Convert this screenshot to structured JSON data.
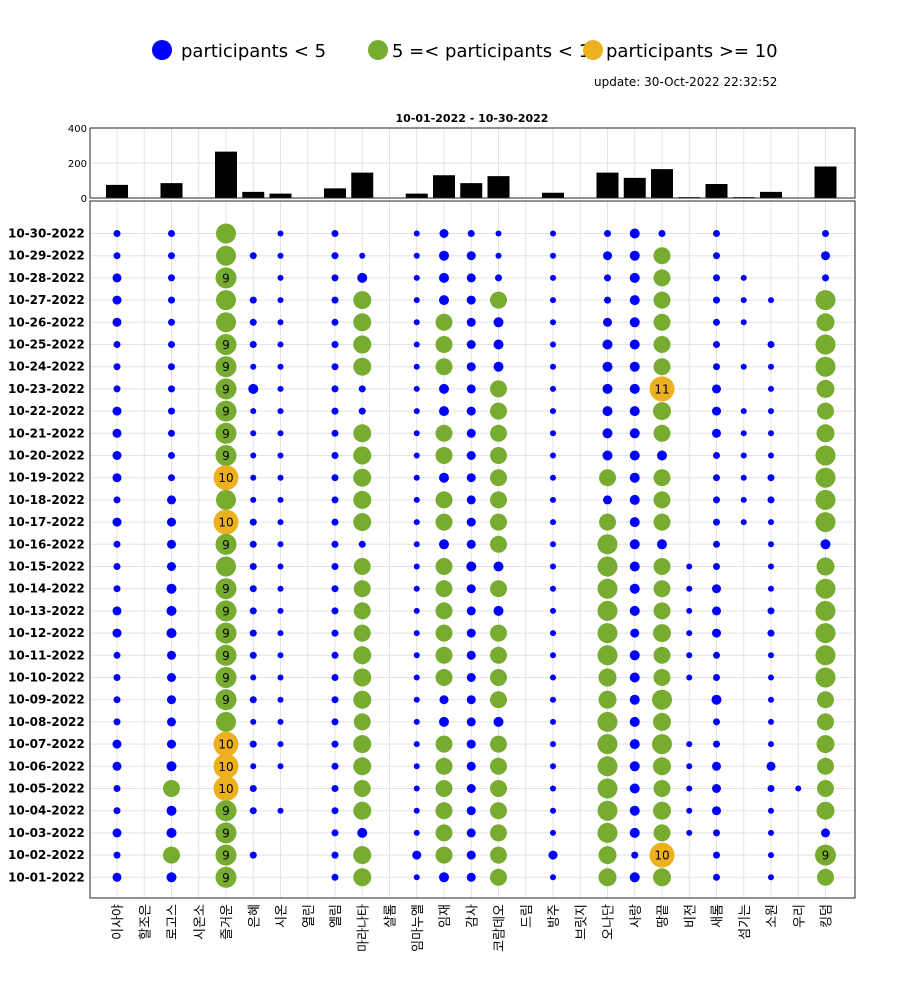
{
  "legend": [
    {
      "label": "participants < 5",
      "color": "#0000ff"
    },
    {
      "label": "5 =< participants < 10",
      "color": "#77ac30"
    },
    {
      "label": "participants >= 10",
      "color": "#edb120"
    }
  ],
  "update": "update: 30-Oct-2022 22:32:52",
  "title": "10-01-2022  - 10-30-2022",
  "chart_data": [
    {
      "type": "bar",
      "categories": [
        "이사야",
        "할조은",
        "로고스",
        "시온소",
        "즐거운",
        "은혜",
        "시온",
        "열린",
        "엘림",
        "마라나타",
        "샬롬",
        "임마누엘",
        "임재",
        "감사",
        "코람데오",
        "드림",
        "방주",
        "브릿지",
        "오나단",
        "사랑",
        "땅끝",
        "비전",
        "새롬",
        "섬기는",
        "소원",
        "우리",
        "킹덤"
      ],
      "values": [
        75,
        0,
        85,
        0,
        265,
        35,
        25,
        0,
        55,
        145,
        0,
        25,
        130,
        85,
        125,
        0,
        30,
        0,
        145,
        115,
        165,
        5,
        80,
        5,
        35,
        0,
        180
      ],
      "ylim": [
        0,
        400
      ],
      "yticks": [
        0,
        200,
        400
      ],
      "bar_color": "#000000"
    },
    {
      "type": "scatter",
      "dates": [
        "10-30-2022",
        "10-29-2022",
        "10-28-2022",
        "10-27-2022",
        "10-26-2022",
        "10-25-2022",
        "10-24-2022",
        "10-23-2022",
        "10-22-2022",
        "10-21-2022",
        "10-20-2022",
        "10-19-2022",
        "10-18-2022",
        "10-17-2022",
        "10-16-2022",
        "10-15-2022",
        "10-14-2022",
        "10-13-2022",
        "10-12-2022",
        "10-11-2022",
        "10-10-2022",
        "10-09-2022",
        "10-08-2022",
        "10-07-2022",
        "10-06-2022",
        "10-05-2022",
        "10-04-2022",
        "10-03-2022",
        "10-02-2022",
        "10-01-2022"
      ],
      "categories": [
        "이사야",
        "할조은",
        "로고스",
        "시온소",
        "즐거운",
        "은혜",
        "시온",
        "열린",
        "엘림",
        "마라나타",
        "샬롬",
        "임마누엘",
        "임재",
        "감사",
        "코람데오",
        "드림",
        "방주",
        "브릿지",
        "오나단",
        "사랑",
        "땅끝",
        "비전",
        "새롬",
        "섬기는",
        "소원",
        "우리",
        "킹덤"
      ],
      "rows": [
        [
          2,
          0,
          2,
          0,
          8,
          0,
          1,
          0,
          2,
          0,
          0,
          1,
          3,
          2,
          1,
          0,
          1,
          0,
          2,
          4,
          2,
          0,
          2,
          0,
          0,
          0,
          2
        ],
        [
          2,
          0,
          2,
          0,
          8,
          2,
          1,
          0,
          2,
          1,
          0,
          1,
          4,
          3,
          1,
          0,
          1,
          0,
          3,
          4,
          6,
          0,
          2,
          0,
          0,
          0,
          3
        ],
        [
          3,
          0,
          2,
          0,
          9,
          0,
          1,
          0,
          2,
          4,
          0,
          1,
          4,
          3,
          2,
          0,
          1,
          0,
          2,
          4,
          6,
          0,
          2,
          1,
          0,
          0,
          2
        ],
        [
          3,
          0,
          2,
          0,
          8,
          2,
          1,
          0,
          2,
          7,
          0,
          1,
          4,
          3,
          6,
          0,
          1,
          0,
          2,
          4,
          6,
          0,
          2,
          1,
          1,
          0,
          8
        ],
        [
          3,
          0,
          2,
          0,
          8,
          2,
          1,
          0,
          2,
          7,
          0,
          1,
          6,
          3,
          4,
          0,
          1,
          0,
          3,
          4,
          6,
          0,
          2,
          1,
          0,
          0,
          7
        ],
        [
          2,
          0,
          2,
          0,
          9,
          2,
          1,
          0,
          2,
          7,
          0,
          1,
          6,
          3,
          4,
          0,
          1,
          0,
          4,
          4,
          6,
          0,
          2,
          0,
          2,
          0,
          8
        ],
        [
          2,
          0,
          2,
          0,
          9,
          1,
          1,
          0,
          2,
          7,
          0,
          1,
          6,
          3,
          4,
          0,
          1,
          0,
          4,
          4,
          6,
          0,
          2,
          1,
          1,
          0,
          8
        ],
        [
          2,
          0,
          2,
          0,
          9,
          4,
          1,
          0,
          2,
          2,
          0,
          1,
          4,
          3,
          6,
          0,
          1,
          0,
          4,
          4,
          11,
          0,
          3,
          0,
          1,
          0,
          7
        ],
        [
          3,
          0,
          2,
          0,
          9,
          1,
          1,
          0,
          2,
          2,
          0,
          1,
          4,
          3,
          6,
          0,
          1,
          0,
          4,
          4,
          7,
          0,
          3,
          1,
          1,
          0,
          6
        ],
        [
          3,
          0,
          2,
          0,
          9,
          1,
          1,
          0,
          2,
          7,
          0,
          1,
          6,
          3,
          6,
          0,
          1,
          0,
          4,
          4,
          6,
          0,
          3,
          1,
          1,
          0,
          7
        ],
        [
          3,
          0,
          2,
          0,
          9,
          1,
          1,
          0,
          2,
          7,
          0,
          1,
          6,
          3,
          6,
          0,
          1,
          0,
          4,
          4,
          4,
          0,
          2,
          1,
          1,
          0,
          8
        ],
        [
          3,
          0,
          2,
          0,
          10,
          1,
          1,
          0,
          2,
          7,
          0,
          1,
          4,
          3,
          6,
          0,
          1,
          0,
          6,
          4,
          6,
          0,
          2,
          1,
          2,
          0,
          8
        ],
        [
          2,
          0,
          3,
          0,
          8,
          1,
          1,
          0,
          2,
          7,
          0,
          1,
          6,
          3,
          6,
          0,
          1,
          0,
          3,
          4,
          6,
          0,
          2,
          1,
          2,
          0,
          8
        ],
        [
          3,
          0,
          3,
          0,
          10,
          2,
          1,
          0,
          2,
          7,
          0,
          1,
          6,
          3,
          6,
          0,
          1,
          0,
          6,
          4,
          6,
          0,
          2,
          1,
          1,
          0,
          8
        ],
        [
          2,
          0,
          3,
          0,
          9,
          2,
          1,
          0,
          2,
          2,
          0,
          1,
          4,
          3,
          6,
          0,
          1,
          0,
          8,
          4,
          4,
          0,
          2,
          0,
          1,
          0,
          4
        ],
        [
          2,
          0,
          3,
          0,
          8,
          2,
          1,
          0,
          2,
          6,
          0,
          1,
          6,
          4,
          4,
          0,
          1,
          0,
          8,
          4,
          6,
          1,
          2,
          0,
          1,
          0,
          7
        ],
        [
          2,
          0,
          4,
          0,
          9,
          2,
          1,
          0,
          2,
          6,
          0,
          1,
          6,
          3,
          6,
          0,
          1,
          0,
          8,
          4,
          6,
          1,
          3,
          0,
          1,
          0,
          8
        ],
        [
          3,
          0,
          4,
          0,
          9,
          2,
          1,
          0,
          2,
          6,
          0,
          1,
          6,
          3,
          4,
          0,
          1,
          0,
          8,
          4,
          6,
          1,
          3,
          0,
          2,
          0,
          8
        ],
        [
          3,
          0,
          4,
          0,
          9,
          2,
          1,
          0,
          2,
          6,
          0,
          1,
          6,
          3,
          6,
          0,
          1,
          0,
          8,
          3,
          7,
          1,
          3,
          0,
          2,
          0,
          8
        ],
        [
          2,
          0,
          3,
          0,
          9,
          2,
          1,
          0,
          2,
          7,
          0,
          1,
          6,
          3,
          6,
          0,
          1,
          0,
          8,
          4,
          6,
          1,
          2,
          0,
          1,
          0,
          8
        ],
        [
          2,
          0,
          3,
          0,
          9,
          1,
          1,
          0,
          2,
          7,
          0,
          1,
          6,
          3,
          6,
          0,
          1,
          0,
          7,
          4,
          6,
          1,
          2,
          0,
          1,
          0,
          8
        ],
        [
          2,
          0,
          3,
          0,
          9,
          2,
          1,
          0,
          2,
          7,
          0,
          1,
          3,
          3,
          6,
          0,
          1,
          0,
          7,
          4,
          8,
          0,
          4,
          0,
          1,
          0,
          6
        ],
        [
          2,
          0,
          3,
          0,
          8,
          1,
          1,
          0,
          2,
          6,
          0,
          1,
          4,
          3,
          4,
          0,
          1,
          0,
          8,
          4,
          7,
          0,
          2,
          0,
          1,
          0,
          6
        ],
        [
          3,
          0,
          3,
          0,
          10,
          2,
          1,
          0,
          2,
          7,
          0,
          1,
          6,
          3,
          6,
          0,
          1,
          0,
          8,
          4,
          8,
          1,
          2,
          0,
          1,
          0,
          7
        ],
        [
          3,
          0,
          4,
          0,
          10,
          1,
          1,
          0,
          2,
          7,
          0,
          1,
          6,
          3,
          6,
          0,
          1,
          0,
          8,
          4,
          7,
          1,
          3,
          0,
          3,
          0,
          6
        ],
        [
          2,
          0,
          6,
          0,
          10,
          2,
          0,
          0,
          2,
          6,
          0,
          1,
          6,
          3,
          6,
          0,
          1,
          0,
          8,
          4,
          6,
          1,
          3,
          0,
          2,
          1,
          6
        ],
        [
          2,
          0,
          4,
          0,
          9,
          2,
          1,
          0,
          2,
          7,
          0,
          1,
          6,
          3,
          6,
          0,
          1,
          0,
          8,
          4,
          7,
          1,
          3,
          0,
          1,
          0,
          7
        ],
        [
          3,
          0,
          4,
          0,
          9,
          0,
          0,
          0,
          2,
          4,
          0,
          1,
          6,
          3,
          6,
          0,
          1,
          0,
          8,
          4,
          6,
          1,
          2,
          0,
          1,
          0,
          3
        ],
        [
          2,
          0,
          6,
          0,
          9,
          2,
          0,
          0,
          2,
          7,
          0,
          3,
          6,
          3,
          6,
          0,
          3,
          0,
          7,
          2,
          10,
          0,
          2,
          0,
          1,
          0,
          9
        ],
        [
          3,
          0,
          4,
          0,
          9,
          0,
          0,
          0,
          2,
          7,
          0,
          1,
          4,
          3,
          6,
          0,
          1,
          0,
          7,
          4,
          7,
          0,
          2,
          0,
          1,
          0,
          6
        ]
      ],
      "labeled_min": 9
    }
  ]
}
